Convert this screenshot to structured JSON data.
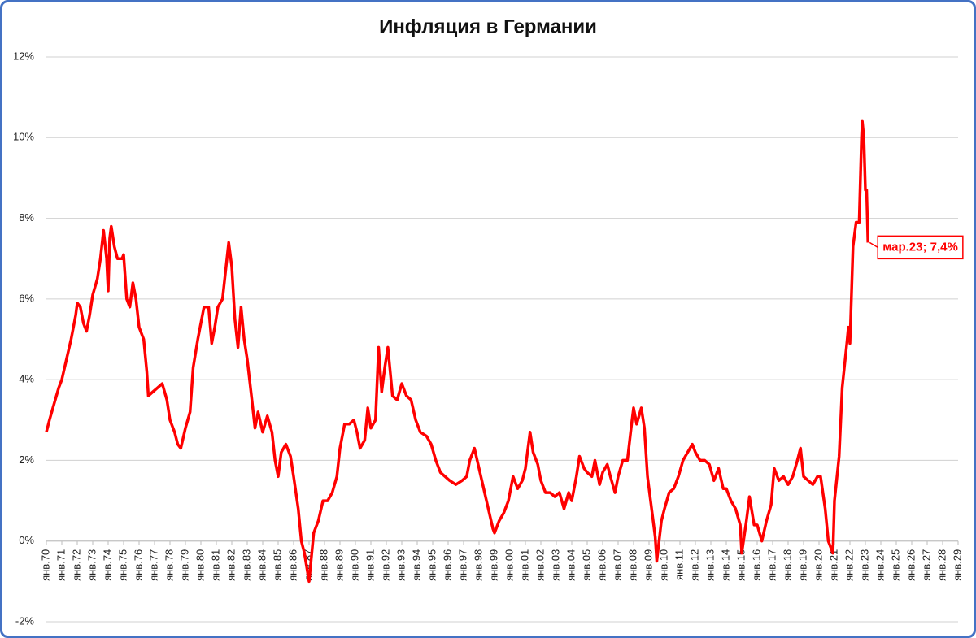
{
  "chart_data": {
    "type": "line",
    "title": "Инфляция в Германии",
    "color": "#ff0000",
    "grid": true,
    "annotation": "мар.23; 7,4%",
    "ylim": [
      -2,
      12
    ],
    "yticks": [
      {
        "value": -2,
        "label": "-2%"
      },
      {
        "value": 0,
        "label": "0%"
      },
      {
        "value": 2,
        "label": "2%"
      },
      {
        "value": 4,
        "label": "4%"
      },
      {
        "value": 6,
        "label": "6%"
      },
      {
        "value": 8,
        "label": "8%"
      },
      {
        "value": 10,
        "label": "10%"
      },
      {
        "value": 12,
        "label": "12%"
      }
    ],
    "xlim": [
      1970,
      2029
    ],
    "xticks": [
      {
        "value": 1970,
        "label": "янв.70"
      },
      {
        "value": 1971,
        "label": "янв.71"
      },
      {
        "value": 1972,
        "label": "янв.72"
      },
      {
        "value": 1973,
        "label": "янв.73"
      },
      {
        "value": 1974,
        "label": "янв.74"
      },
      {
        "value": 1975,
        "label": "янв.75"
      },
      {
        "value": 1976,
        "label": "янв.76"
      },
      {
        "value": 1977,
        "label": "янв.77"
      },
      {
        "value": 1978,
        "label": "янв.78"
      },
      {
        "value": 1979,
        "label": "янв.79"
      },
      {
        "value": 1980,
        "label": "янв.80"
      },
      {
        "value": 1981,
        "label": "янв.81"
      },
      {
        "value": 1982,
        "label": "янв.82"
      },
      {
        "value": 1983,
        "label": "янв.83"
      },
      {
        "value": 1984,
        "label": "янв.84"
      },
      {
        "value": 1985,
        "label": "янв.85"
      },
      {
        "value": 1986,
        "label": "янв.86"
      },
      {
        "value": 1987,
        "label": "янв.87"
      },
      {
        "value": 1988,
        "label": "янв.88"
      },
      {
        "value": 1989,
        "label": "янв.89"
      },
      {
        "value": 1990,
        "label": "янв.90"
      },
      {
        "value": 1991,
        "label": "янв.91"
      },
      {
        "value": 1992,
        "label": "янв.92"
      },
      {
        "value": 1993,
        "label": "янв.93"
      },
      {
        "value": 1994,
        "label": "янв.94"
      },
      {
        "value": 1995,
        "label": "янв.95"
      },
      {
        "value": 1996,
        "label": "янв.96"
      },
      {
        "value": 1997,
        "label": "янв.97"
      },
      {
        "value": 1998,
        "label": "янв.98"
      },
      {
        "value": 1999,
        "label": "янв.99"
      },
      {
        "value": 2000,
        "label": "янв.00"
      },
      {
        "value": 2001,
        "label": "янв.01"
      },
      {
        "value": 2002,
        "label": "янв.02"
      },
      {
        "value": 2003,
        "label": "янв.03"
      },
      {
        "value": 2004,
        "label": "янв.04"
      },
      {
        "value": 2005,
        "label": "янв.05"
      },
      {
        "value": 2006,
        "label": "янв.06"
      },
      {
        "value": 2007,
        "label": "янв.07"
      },
      {
        "value": 2008,
        "label": "янв.08"
      },
      {
        "value": 2009,
        "label": "янв.09"
      },
      {
        "value": 2010,
        "label": "янв.10"
      },
      {
        "value": 2011,
        "label": "янв.11"
      },
      {
        "value": 2012,
        "label": "янв.12"
      },
      {
        "value": 2013,
        "label": "янв.13"
      },
      {
        "value": 2014,
        "label": "янв.14"
      },
      {
        "value": 2015,
        "label": "янв.15"
      },
      {
        "value": 2016,
        "label": "янв.16"
      },
      {
        "value": 2017,
        "label": "янв.17"
      },
      {
        "value": 2018,
        "label": "янв.18"
      },
      {
        "value": 2019,
        "label": "янв.19"
      },
      {
        "value": 2020,
        "label": "янв.20"
      },
      {
        "value": 2021,
        "label": "янв.21"
      },
      {
        "value": 2022,
        "label": "янв.22"
      },
      {
        "value": 2023,
        "label": "янв.23"
      },
      {
        "value": 2024,
        "label": "янв.24"
      },
      {
        "value": 2025,
        "label": "янв.25"
      },
      {
        "value": 2026,
        "label": "янв.26"
      },
      {
        "value": 2027,
        "label": "янв.27"
      },
      {
        "value": 2028,
        "label": "янв.28"
      },
      {
        "value": 2029,
        "label": "янв.29"
      }
    ],
    "x": [
      1970.0,
      1970.2,
      1970.5,
      1970.8,
      1971.0,
      1971.3,
      1971.6,
      1971.9,
      1972.0,
      1972.2,
      1972.4,
      1972.6,
      1972.8,
      1973.0,
      1973.3,
      1973.5,
      1973.7,
      1973.9,
      1974.0,
      1974.1,
      1974.2,
      1974.4,
      1974.6,
      1974.9,
      1975.0,
      1975.2,
      1975.4,
      1975.6,
      1975.8,
      1976.0,
      1976.3,
      1976.5,
      1976.6,
      1976.9,
      1977.2,
      1977.5,
      1977.8,
      1978.0,
      1978.3,
      1978.5,
      1978.7,
      1979.0,
      1979.3,
      1979.5,
      1979.8,
      1980.0,
      1980.2,
      1980.5,
      1980.7,
      1980.9,
      1981.1,
      1981.4,
      1981.6,
      1981.8,
      1982.0,
      1982.2,
      1982.4,
      1982.6,
      1982.8,
      1983.0,
      1983.3,
      1983.5,
      1983.7,
      1984.0,
      1984.3,
      1984.6,
      1984.8,
      1985.0,
      1985.2,
      1985.5,
      1985.8,
      1986.0,
      1986.3,
      1986.5,
      1986.7,
      1987.0,
      1987.3,
      1987.6,
      1987.9,
      1988.2,
      1988.5,
      1988.8,
      1989.0,
      1989.3,
      1989.6,
      1989.9,
      1990.1,
      1990.3,
      1990.6,
      1990.8,
      1991.0,
      1991.3,
      1991.5,
      1991.7,
      1991.9,
      1992.1,
      1992.4,
      1992.7,
      1993.0,
      1993.3,
      1993.6,
      1993.9,
      1994.2,
      1994.6,
      1994.9,
      1995.2,
      1995.5,
      1995.8,
      1996.1,
      1996.5,
      1996.9,
      1997.2,
      1997.4,
      1997.7,
      1998.0,
      1998.3,
      1998.6,
      1998.9,
      1999.0,
      1999.3,
      1999.6,
      1999.9,
      2000.2,
      2000.5,
      2000.8,
      2001.0,
      2001.3,
      2001.5,
      2001.8,
      2002.0,
      2002.3,
      2002.6,
      2002.9,
      2003.2,
      2003.5,
      2003.8,
      2004.0,
      2004.3,
      2004.5,
      2004.8,
      2005.0,
      2005.3,
      2005.5,
      2005.8,
      2006.0,
      2006.3,
      2006.5,
      2006.8,
      2007.0,
      2007.3,
      2007.6,
      2007.9,
      2008.0,
      2008.2,
      2008.5,
      2008.7,
      2008.9,
      2009.1,
      2009.4,
      2009.5,
      2009.8,
      2010.0,
      2010.3,
      2010.6,
      2010.9,
      2011.2,
      2011.5,
      2011.8,
      2012.0,
      2012.3,
      2012.6,
      2012.9,
      2013.2,
      2013.5,
      2013.8,
      2014.0,
      2014.3,
      2014.6,
      2014.9,
      2015.0,
      2015.3,
      2015.5,
      2015.8,
      2016.0,
      2016.3,
      2016.6,
      2016.9,
      2017.1,
      2017.4,
      2017.7,
      2018.0,
      2018.3,
      2018.6,
      2018.8,
      2019.0,
      2019.3,
      2019.6,
      2019.9,
      2020.1,
      2020.4,
      2020.6,
      2020.9,
      2021.0,
      2021.3,
      2021.5,
      2021.8,
      2021.9,
      2022.0,
      2022.2,
      2022.4,
      2022.6,
      2022.75,
      2022.8,
      2022.9,
      2023.0,
      2023.08,
      2023.17
    ],
    "values": [
      2.7,
      3.0,
      3.4,
      3.8,
      4.0,
      4.5,
      5.0,
      5.6,
      5.9,
      5.8,
      5.4,
      5.2,
      5.6,
      6.1,
      6.5,
      7.0,
      7.7,
      7.0,
      6.2,
      7.5,
      7.8,
      7.3,
      7.0,
      7.0,
      7.1,
      6.0,
      5.8,
      6.4,
      6.0,
      5.3,
      5.0,
      4.2,
      3.6,
      3.7,
      3.8,
      3.9,
      3.5,
      3.0,
      2.7,
      2.4,
      2.3,
      2.8,
      3.2,
      4.3,
      5.0,
      5.4,
      5.8,
      5.8,
      4.9,
      5.3,
      5.8,
      6.0,
      6.7,
      7.4,
      6.8,
      5.5,
      4.8,
      5.8,
      5.0,
      4.5,
      3.5,
      2.8,
      3.2,
      2.7,
      3.1,
      2.7,
      2.0,
      1.6,
      2.2,
      2.4,
      2.1,
      1.6,
      0.8,
      0.0,
      -0.3,
      -1.0,
      0.2,
      0.5,
      1.0,
      1.0,
      1.2,
      1.6,
      2.3,
      2.9,
      2.9,
      3.0,
      2.7,
      2.3,
      2.5,
      3.3,
      2.8,
      3.0,
      4.8,
      3.7,
      4.3,
      4.8,
      3.6,
      3.5,
      3.9,
      3.6,
      3.5,
      3.0,
      2.7,
      2.6,
      2.4,
      2.0,
      1.7,
      1.6,
      1.5,
      1.4,
      1.5,
      1.6,
      2.0,
      2.3,
      1.8,
      1.3,
      0.8,
      0.3,
      0.2,
      0.5,
      0.7,
      1.0,
      1.6,
      1.3,
      1.5,
      1.8,
      2.7,
      2.2,
      1.9,
      1.5,
      1.2,
      1.2,
      1.1,
      1.2,
      0.8,
      1.2,
      1.0,
      1.6,
      2.1,
      1.8,
      1.7,
      1.6,
      2.0,
      1.4,
      1.7,
      1.9,
      1.6,
      1.2,
      1.6,
      2.0,
      2.0,
      3.0,
      3.3,
      2.9,
      3.3,
      2.8,
      1.6,
      1.0,
      0.1,
      -0.5,
      0.5,
      0.8,
      1.2,
      1.3,
      1.6,
      2.0,
      2.2,
      2.4,
      2.2,
      2.0,
      2.0,
      1.9,
      1.5,
      1.8,
      1.3,
      1.3,
      1.0,
      0.8,
      0.4,
      -0.3,
      0.5,
      1.1,
      0.4,
      0.4,
      0.0,
      0.5,
      0.9,
      1.8,
      1.5,
      1.6,
      1.4,
      1.6,
      2.0,
      2.3,
      1.6,
      1.5,
      1.4,
      1.6,
      1.6,
      0.8,
      0.0,
      -0.3,
      1.0,
      2.1,
      3.8,
      4.9,
      5.3,
      4.9,
      7.3,
      7.9,
      7.9,
      10.0,
      10.4,
      10.0,
      8.7,
      8.7,
      7.4
    ]
  }
}
